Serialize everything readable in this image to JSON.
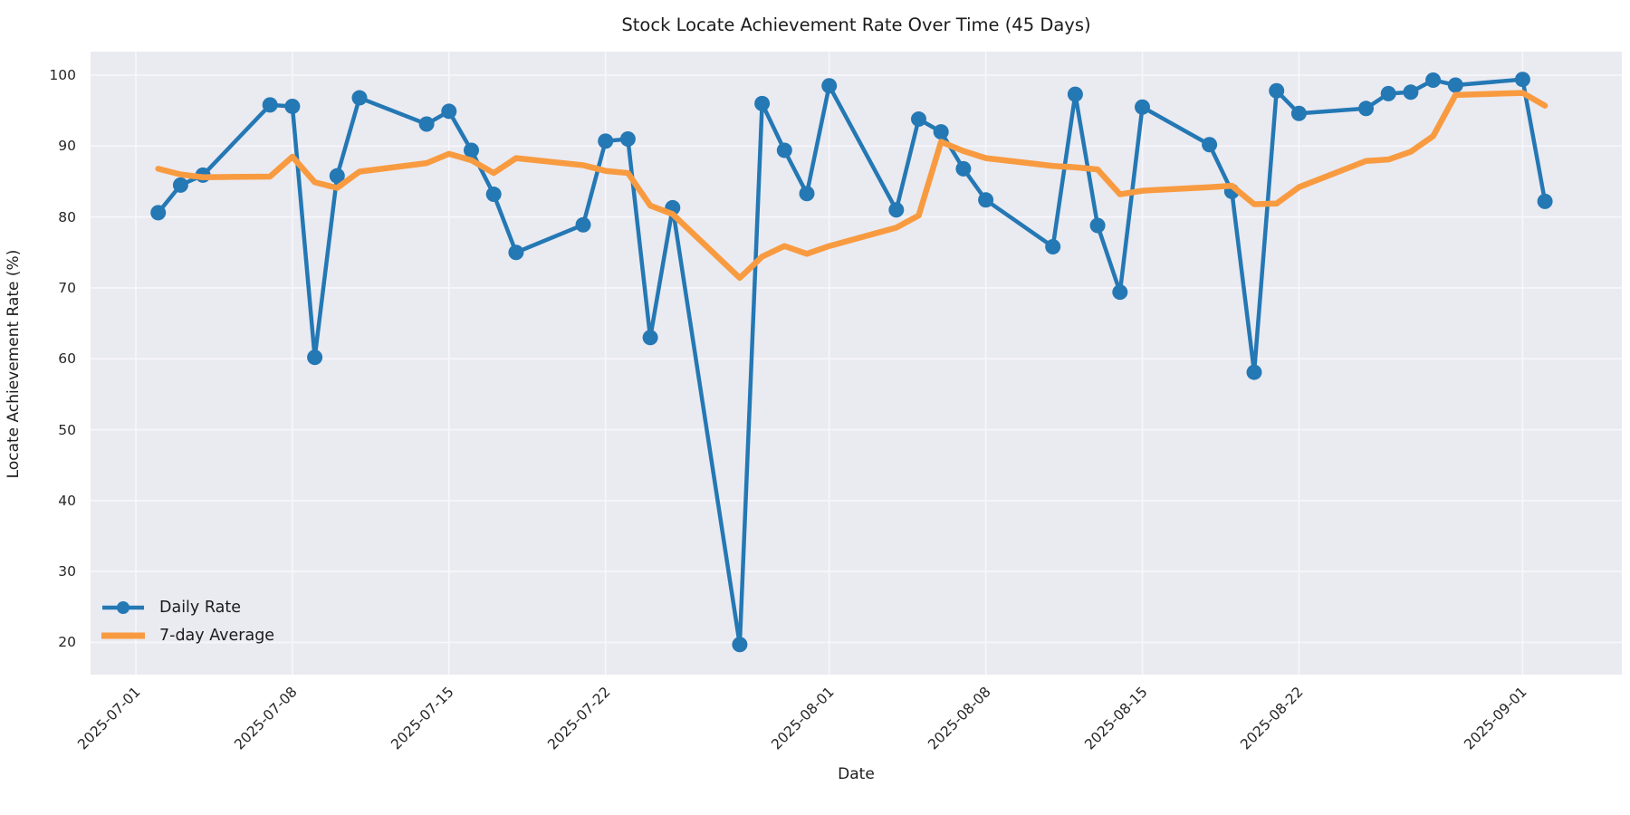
{
  "chart_data": {
    "type": "line",
    "title": "Stock Locate Achievement Rate Over Time (45 Days)",
    "xlabel": "Date",
    "ylabel": "Locate Achievement Rate (%)",
    "grid": true,
    "plot_background": "#eaeaf1",
    "gridline_color": "#f7f7fb",
    "x_tick_labels": [
      "2025-07-01",
      "2025-07-08",
      "2025-07-15",
      "2025-07-22",
      "2025-08-01",
      "2025-08-08",
      "2025-08-15",
      "2025-08-22",
      "2025-09-01"
    ],
    "y_tick_labels": [
      20,
      30,
      40,
      50,
      60,
      70,
      80,
      90,
      100
    ],
    "ylim": [
      15,
      103.5
    ],
    "legend_position": "lower left",
    "dates": [
      "2025-07-02",
      "2025-07-03",
      "2025-07-04",
      "2025-07-07",
      "2025-07-08",
      "2025-07-09",
      "2025-07-10",
      "2025-07-11",
      "2025-07-14",
      "2025-07-15",
      "2025-07-16",
      "2025-07-17",
      "2025-07-18",
      "2025-07-21",
      "2025-07-22",
      "2025-07-23",
      "2025-07-24",
      "2025-07-25",
      "2025-07-28",
      "2025-07-29",
      "2025-07-30",
      "2025-07-31",
      "2025-08-01",
      "2025-08-04",
      "2025-08-05",
      "2025-08-06",
      "2025-08-07",
      "2025-08-08",
      "2025-08-11",
      "2025-08-12",
      "2025-08-13",
      "2025-08-14",
      "2025-08-15",
      "2025-08-18",
      "2025-08-19",
      "2025-08-20",
      "2025-08-21",
      "2025-08-22",
      "2025-08-25",
      "2025-08-26",
      "2025-08-27",
      "2025-08-28",
      "2025-08-29",
      "2025-09-01",
      "2025-09-02"
    ],
    "series": [
      {
        "name": "Daily Rate",
        "color": "#2478b4",
        "marker": "circle",
        "line_width": 4.5,
        "values": [
          80.6,
          84.5,
          85.9,
          95.8,
          95.6,
          60.2,
          85.8,
          96.8,
          93.1,
          94.9,
          89.4,
          83.2,
          75.0,
          78.9,
          90.7,
          91.0,
          63.0,
          81.3,
          19.7,
          96.0,
          89.4,
          83.3,
          98.5,
          81.0,
          93.8,
          92.0,
          86.8,
          82.4,
          75.8,
          97.3,
          78.8,
          69.4,
          95.5,
          90.2,
          83.6,
          58.1,
          97.8,
          94.6,
          95.3,
          97.4,
          97.6,
          99.3,
          98.6,
          99.4,
          82.2
        ]
      },
      {
        "name": "7-day Average",
        "color": "#f89b40",
        "marker": "none",
        "line_width": 6.5,
        "values": [
          86.8,
          86.0,
          85.6,
          85.7,
          88.5,
          84.9,
          84.1,
          86.4,
          87.6,
          88.9,
          88.0,
          86.2,
          88.3,
          87.3,
          86.5,
          86.2,
          81.6,
          80.4,
          71.4,
          74.4,
          75.9,
          74.8,
          75.9,
          78.5,
          80.2,
          90.6,
          89.3,
          88.3,
          87.2,
          87.0,
          86.7,
          83.2,
          83.7,
          84.2,
          84.4,
          81.8,
          81.9,
          84.2,
          87.9,
          88.1,
          89.2,
          91.4,
          97.2,
          97.5,
          95.7
        ]
      }
    ]
  }
}
